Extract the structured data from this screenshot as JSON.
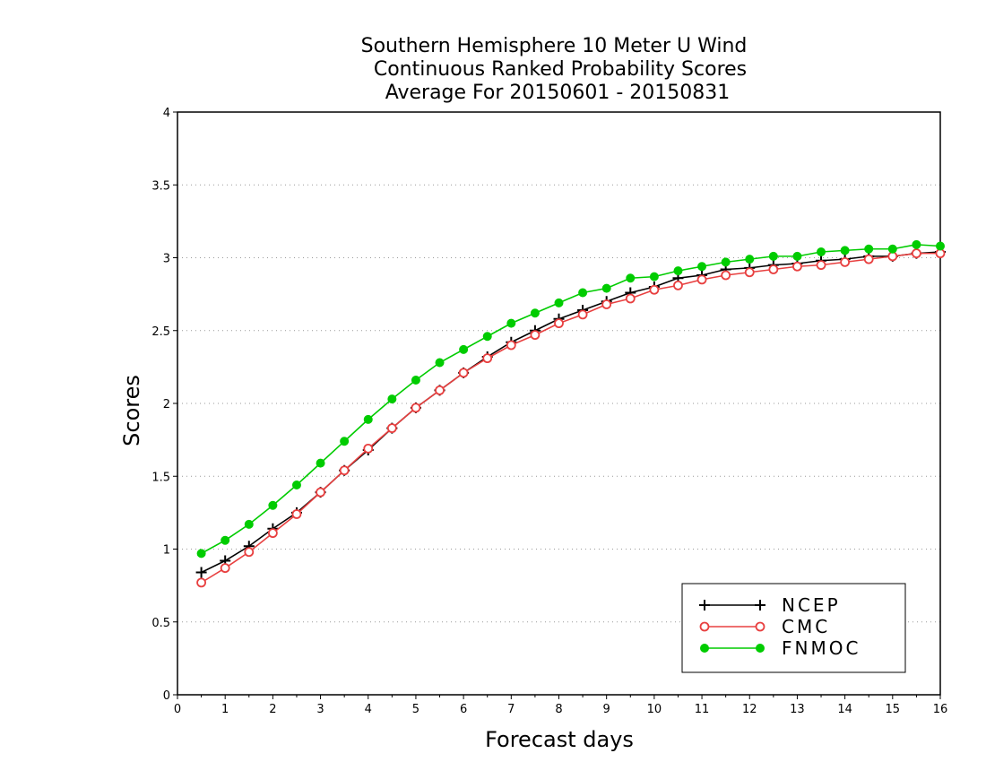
{
  "chart_data": {
    "type": "line",
    "title_lines": [
      "Southern Hemisphere 10 Meter U Wind",
      "Continuous Ranked Probability Scores",
      "Average For 20150601 - 20150831"
    ],
    "xlabel": "Forecast days",
    "ylabel": "Scores",
    "xlim": [
      0,
      16
    ],
    "ylim": [
      0,
      4
    ],
    "xticks": [
      0,
      1,
      2,
      3,
      4,
      5,
      6,
      7,
      8,
      9,
      10,
      11,
      12,
      13,
      14,
      15,
      16
    ],
    "yticks": [
      0,
      0.5,
      1,
      1.5,
      2,
      2.5,
      3,
      3.5,
      4
    ],
    "ytick_labels": [
      "0",
      "0.5",
      "1",
      "1.5",
      "2",
      "2.5",
      "3",
      "3.5",
      "4"
    ],
    "grid": "horizontal dotted",
    "legend_position": "bottom-right",
    "x": [
      0.5,
      1,
      1.5,
      2,
      2.5,
      3,
      3.5,
      4,
      4.5,
      5,
      5.5,
      6,
      6.5,
      7,
      7.5,
      8,
      8.5,
      9,
      9.5,
      10,
      10.5,
      11,
      11.5,
      12,
      12.5,
      13,
      13.5,
      14,
      14.5,
      15,
      15.5,
      16
    ],
    "series": [
      {
        "name": "NCEP",
        "color": "#000000",
        "marker": "plus",
        "values": [
          0.84,
          0.92,
          1.02,
          1.14,
          1.25,
          1.39,
          1.54,
          1.68,
          1.83,
          1.97,
          2.09,
          2.21,
          2.32,
          2.42,
          2.5,
          2.58,
          2.64,
          2.7,
          2.76,
          2.8,
          2.86,
          2.88,
          2.92,
          2.93,
          2.95,
          2.96,
          2.98,
          2.99,
          3.01,
          3.01,
          3.03,
          3.04
        ]
      },
      {
        "name": "CMC",
        "color": "#e84040",
        "marker": "open-circle",
        "values": [
          0.77,
          0.87,
          0.98,
          1.11,
          1.24,
          1.39,
          1.54,
          1.69,
          1.83,
          1.97,
          2.09,
          2.21,
          2.31,
          2.4,
          2.47,
          2.55,
          2.61,
          2.68,
          2.72,
          2.78,
          2.81,
          2.85,
          2.88,
          2.9,
          2.92,
          2.94,
          2.95,
          2.97,
          2.99,
          3.01,
          3.03,
          3.03
        ]
      },
      {
        "name": "FNMOC",
        "color": "#00cc00",
        "marker": "filled-circle",
        "values": [
          0.97,
          1.06,
          1.17,
          1.3,
          1.44,
          1.59,
          1.74,
          1.89,
          2.03,
          2.16,
          2.28,
          2.37,
          2.46,
          2.55,
          2.62,
          2.69,
          2.76,
          2.79,
          2.86,
          2.87,
          2.91,
          2.94,
          2.97,
          2.99,
          3.01,
          3.01,
          3.04,
          3.05,
          3.06,
          3.06,
          3.09,
          3.08
        ]
      }
    ]
  }
}
